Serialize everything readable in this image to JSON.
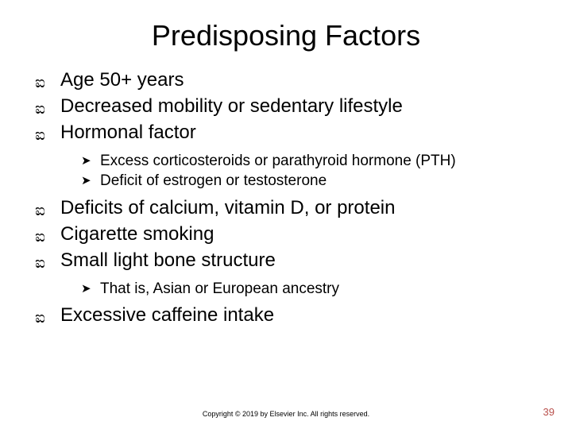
{
  "title": "Predisposing Factors",
  "bullet_level1_glyph": "ಐ",
  "bullet_level2_glyph": "➤",
  "items": {
    "l1_0": "Age 50+ years",
    "l1_1": "Decreased mobility or sedentary lifestyle",
    "l1_2": "Hormonal factor",
    "l2_0": "Excess corticosteroids or parathyroid hormone (PTH)",
    "l2_1": "Deficit of estrogen or testosterone",
    "l1_3": "Deficits of calcium, vitamin D, or protein",
    "l1_4": "Cigarette smoking",
    "l1_5": "Small light bone structure",
    "l2_2": "That is, Asian or European ancestry",
    "l1_6": "Excessive caffeine intake"
  },
  "copyright": "Copyright © 2019 by Elsevier Inc. All rights reserved.",
  "page_number": "39",
  "colors": {
    "background": "#ffffff",
    "text": "#000000",
    "page_number": "#b9504c"
  },
  "typography": {
    "title_fontsize": 36,
    "level1_fontsize": 24,
    "level2_fontsize": 19,
    "copyright_fontsize": 9,
    "pagenum_fontsize": 13
  }
}
